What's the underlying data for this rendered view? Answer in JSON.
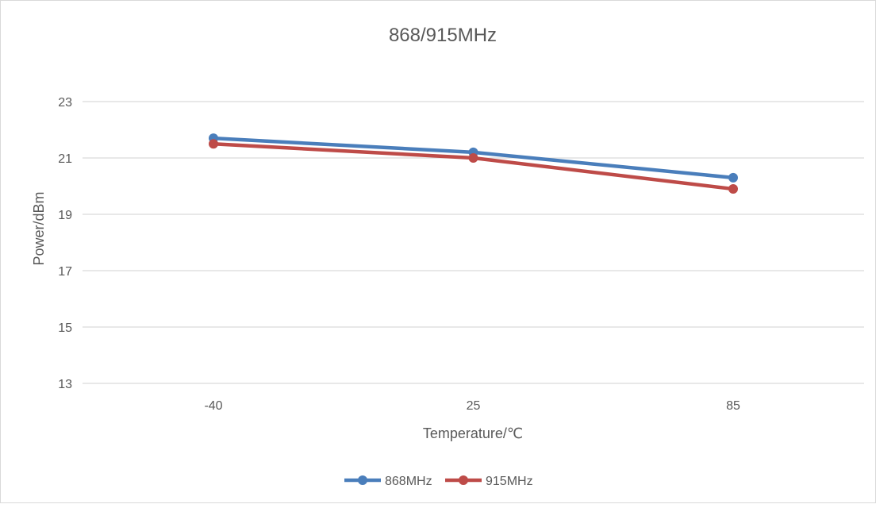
{
  "chart_data": {
    "type": "line",
    "title": "868/915MHz",
    "xlabel": "Temperature/℃",
    "ylabel": "Power/dBm",
    "categories": [
      "-40",
      "25",
      "85"
    ],
    "ylim": [
      13,
      23
    ],
    "yticks": [
      13,
      15,
      17,
      19,
      21,
      23
    ],
    "grid": true,
    "legend_position": "bottom",
    "series": [
      {
        "name": "868MHz",
        "values": [
          21.7,
          21.2,
          20.3
        ],
        "color": "#4a7ebb"
      },
      {
        "name": "915MHz",
        "values": [
          21.5,
          21.0,
          19.9
        ],
        "color": "#be4b48"
      }
    ]
  }
}
